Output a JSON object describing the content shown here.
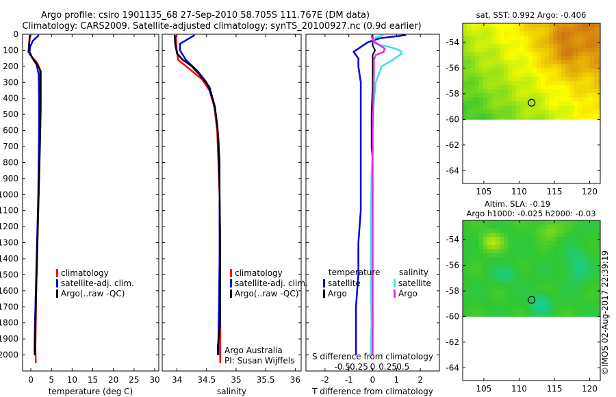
{
  "figure": {
    "title_line1": "Argo profile: csiro 1901135_68 27-Sep-2010 58.705S 111.767E (DM data)",
    "title_line2": "Climatology: CARS2009. Satellite-adjusted climatology: synTS_20100927.nc (0.9d earlier)",
    "credit": "©IMOS 02-Aug-2017 22:39:19",
    "colors": {
      "climatology": "#ff0000",
      "satellite": "#0000dd",
      "argo": "#000000",
      "satellite_diff_s": "#33e6e6",
      "argo_diff_s": "#ee22ee"
    }
  },
  "chart_data": [
    {
      "type": "line",
      "panel": "temperature",
      "xlabel": "temperature (deg C)",
      "xlim": [
        -2,
        31
      ],
      "xticks": [
        "0",
        "5",
        "10",
        "15",
        "20",
        "25",
        "30"
      ],
      "ylim": [
        2100,
        0
      ],
      "yticks": [
        "0",
        "100",
        "200",
        "300",
        "400",
        "500",
        "600",
        "700",
        "800",
        "900",
        "1000",
        "1100",
        "1200",
        "1300",
        "1400",
        "1500",
        "1600",
        "1700",
        "1800",
        "1900",
        "2000"
      ],
      "legend": [
        "climatology",
        "satellite-adj. clim.",
        "Argo(..raw -QC)"
      ],
      "series": [
        {
          "name": "climatology",
          "points": [
            [
              -0.3,
              5
            ],
            [
              -0.4,
              60
            ],
            [
              -0.6,
              110
            ],
            [
              0.2,
              140
            ],
            [
              1.6,
              180
            ],
            [
              2.2,
              220
            ],
            [
              2.3,
              300
            ],
            [
              2.3,
              450
            ],
            [
              2.2,
              600
            ],
            [
              2.1,
              800
            ],
            [
              1.9,
              1000
            ],
            [
              1.7,
              1200
            ],
            [
              1.5,
              1400
            ],
            [
              1.3,
              1600
            ],
            [
              1.2,
              1800
            ],
            [
              1.1,
              1950
            ],
            [
              1.2,
              2050
            ]
          ]
        },
        {
          "name": "satellite-adj. clim.",
          "points": [
            [
              2.0,
              5
            ],
            [
              0.5,
              40
            ],
            [
              -0.2,
              80
            ],
            [
              -0.3,
              110
            ],
            [
              0.4,
              150
            ],
            [
              1.4,
              190
            ],
            [
              1.9,
              250
            ],
            [
              2.0,
              400
            ],
            [
              2.0,
              600
            ],
            [
              1.9,
              800
            ],
            [
              1.8,
              1000
            ],
            [
              1.6,
              1200
            ],
            [
              1.4,
              1400
            ],
            [
              1.2,
              1600
            ],
            [
              1.0,
              1800
            ],
            [
              0.9,
              1950
            ],
            [
              0.9,
              2000
            ]
          ]
        },
        {
          "name": "Argo(..raw -QC)",
          "points": [
            [
              -0.2,
              5
            ],
            [
              -0.4,
              60
            ],
            [
              -0.5,
              110
            ],
            [
              0.4,
              150
            ],
            [
              1.8,
              200
            ],
            [
              2.4,
              230
            ],
            [
              2.4,
              300
            ],
            [
              2.4,
              450
            ],
            [
              2.3,
              600
            ],
            [
              2.1,
              800
            ],
            [
              1.9,
              1000
            ],
            [
              1.7,
              1200
            ],
            [
              1.5,
              1400
            ],
            [
              1.3,
              1600
            ],
            [
              1.1,
              1800
            ],
            [
              1.0,
              1950
            ],
            [
              1.0,
              2000
            ]
          ]
        }
      ]
    },
    {
      "type": "line",
      "panel": "salinity",
      "xlabel": "salinity",
      "xlim": [
        33.75,
        36.1
      ],
      "xticks": [
        "34",
        "34.5",
        "35",
        "35.5",
        "36"
      ],
      "ylim": [
        2100,
        0
      ],
      "legend": [
        "climatology",
        "satellite-adj. clim.",
        "Argo(..raw -QC)"
      ],
      "annotation_line1": "Argo Australia",
      "annotation_line2": "PI: Susan Wijffels",
      "series": [
        {
          "name": "climatology",
          "points": [
            [
              33.98,
              5
            ],
            [
              33.99,
              80
            ],
            [
              34.02,
              160
            ],
            [
              34.22,
              220
            ],
            [
              34.42,
              280
            ],
            [
              34.55,
              350
            ],
            [
              34.63,
              450
            ],
            [
              34.68,
              600
            ],
            [
              34.7,
              800
            ],
            [
              34.72,
              1000
            ],
            [
              34.73,
              1300
            ],
            [
              34.73,
              1600
            ],
            [
              34.73,
              2050
            ]
          ]
        },
        {
          "name": "satellite-adj. clim.",
          "points": [
            [
              34.3,
              5
            ],
            [
              34.05,
              60
            ],
            [
              34.05,
              100
            ],
            [
              34.15,
              160
            ],
            [
              34.35,
              230
            ],
            [
              34.5,
              300
            ],
            [
              34.6,
              400
            ],
            [
              34.66,
              500
            ],
            [
              34.7,
              650
            ],
            [
              34.72,
              800
            ],
            [
              34.72,
              1100
            ],
            [
              34.72,
              1400
            ],
            [
              34.71,
              1700
            ],
            [
              34.7,
              1900
            ],
            [
              34.7,
              2000
            ]
          ]
        },
        {
          "name": "Argo(..raw -QC)",
          "points": [
            [
              33.96,
              5
            ],
            [
              33.97,
              60
            ],
            [
              34.0,
              120
            ],
            [
              34.1,
              160
            ],
            [
              34.25,
              200
            ],
            [
              34.4,
              260
            ],
            [
              34.55,
              330
            ],
            [
              34.64,
              450
            ],
            [
              34.69,
              600
            ],
            [
              34.71,
              800
            ],
            [
              34.72,
              1000
            ],
            [
              34.73,
              1300
            ],
            [
              34.73,
              1600
            ],
            [
              34.73,
              1800
            ],
            [
              34.69,
              1950
            ],
            [
              34.69,
              2000
            ]
          ]
        }
      ]
    },
    {
      "type": "line",
      "panel": "differences",
      "xlabel": "T difference from climatology",
      "xlabel_top": "S difference from climatology",
      "xlim": [
        -2.8,
        2.8
      ],
      "xticks": [
        "-2",
        "-1",
        "0",
        "1",
        "2"
      ],
      "xticks_s": [
        "-0.5",
        "-0.25",
        "0",
        "0.25",
        "0.5"
      ],
      "ylim": [
        2100,
        0
      ],
      "legend_temperature_title": "temperature",
      "legend_salinity_title": "salinity",
      "legend_temperature": [
        "satellite",
        "Argo"
      ],
      "legend_salinity": [
        "satellite",
        "Argo"
      ],
      "series": [
        {
          "name": "satellite",
          "group": "temperature",
          "points": [
            [
              1.4,
              5
            ],
            [
              0.3,
              25
            ],
            [
              -0.2,
              50
            ],
            [
              -0.5,
              80
            ],
            [
              -0.8,
              110
            ],
            [
              -0.6,
              150
            ],
            [
              -0.6,
              200
            ],
            [
              -0.5,
              300
            ],
            [
              -0.5,
              500
            ],
            [
              -0.5,
              700
            ],
            [
              -0.5,
              900
            ],
            [
              -0.5,
              1100
            ],
            [
              -0.6,
              1300
            ],
            [
              -0.6,
              1500
            ],
            [
              -0.7,
              1700
            ],
            [
              -0.7,
              1900
            ],
            [
              -0.7,
              2000
            ]
          ]
        },
        {
          "name": "Argo",
          "group": "temperature",
          "points": [
            [
              0.0,
              5
            ],
            [
              0.0,
              70
            ],
            [
              0.1,
              100
            ],
            [
              0.0,
              130
            ],
            [
              0.0,
              160
            ],
            [
              0.0,
              200
            ],
            [
              0.0,
              300
            ],
            [
              -0.05,
              500
            ],
            [
              -0.05,
              650
            ],
            [
              -0.05,
              700
            ],
            [
              0.0,
              800
            ],
            [
              0.0,
              1000
            ],
            [
              0.0,
              1300
            ],
            [
              0.0,
              1600
            ],
            [
              0.0,
              2000
            ]
          ]
        },
        {
          "name": "satellite",
          "group": "salinity",
          "points": [
            [
              0.18,
              5
            ],
            [
              0.05,
              20
            ],
            [
              0.0,
              40
            ],
            [
              0.05,
              60
            ],
            [
              0.28,
              80
            ],
            [
              0.45,
              100
            ],
            [
              0.48,
              120
            ],
            [
              0.33,
              160
            ],
            [
              0.15,
              200
            ],
            [
              0.05,
              300
            ],
            [
              0.0,
              500
            ],
            [
              0.0,
              700
            ],
            [
              -0.02,
              900
            ],
            [
              -0.03,
              1200
            ],
            [
              -0.03,
              1500
            ],
            [
              -0.02,
              1800
            ],
            [
              -0.03,
              2000
            ]
          ]
        },
        {
          "name": "Argo",
          "group": "salinity",
          "points": [
            [
              -0.02,
              5
            ],
            [
              0.0,
              40
            ],
            [
              0.08,
              60
            ],
            [
              0.2,
              90
            ],
            [
              0.18,
              110
            ],
            [
              0.05,
              130
            ],
            [
              0.02,
              160
            ],
            [
              0.02,
              250
            ],
            [
              0.01,
              400
            ],
            [
              0.0,
              600
            ],
            [
              0.0,
              800
            ],
            [
              0.0,
              1000
            ],
            [
              0.0,
              1300
            ],
            [
              0.0,
              1600
            ],
            [
              0.0,
              2000
            ]
          ]
        }
      ]
    },
    {
      "type": "heatmap",
      "panel": "sst_map",
      "title": "sat. SST: 0.992  Argo: -0.406",
      "xlim": [
        102,
        121.5
      ],
      "ylim": [
        -65,
        -52.5
      ],
      "xticks": [
        "105",
        "110",
        "115",
        "120"
      ],
      "yticks": [
        "-54",
        "-56",
        "-58",
        "-60",
        "-62",
        "-64"
      ],
      "data_top_lat": -52.8,
      "data_bottom_lat": -60,
      "argo_position": {
        "lon": 111.767,
        "lat": -58.705
      },
      "color_low": "#2ec42e",
      "color_mid": "#ffff00",
      "color_high": "#c85a14"
    },
    {
      "type": "heatmap",
      "panel": "sla_map",
      "title_line1": "Altim. SLA: -0.19",
      "title_line2": "Argo h1000: -0.025  h2000: -0.03",
      "xlim": [
        102,
        121.5
      ],
      "ylim": [
        -65,
        -52.5
      ],
      "xticks": [
        "105",
        "110",
        "115",
        "120"
      ],
      "yticks": [
        "-54",
        "-56",
        "-58",
        "-60",
        "-62",
        "-64"
      ],
      "data_top_lat": -52.8,
      "data_bottom_lat": -60,
      "argo_position": {
        "lon": 111.767,
        "lat": -58.705
      },
      "color_low": "#00d2e6",
      "color_mid": "#32c832",
      "color_high": "#e6f000"
    }
  ]
}
